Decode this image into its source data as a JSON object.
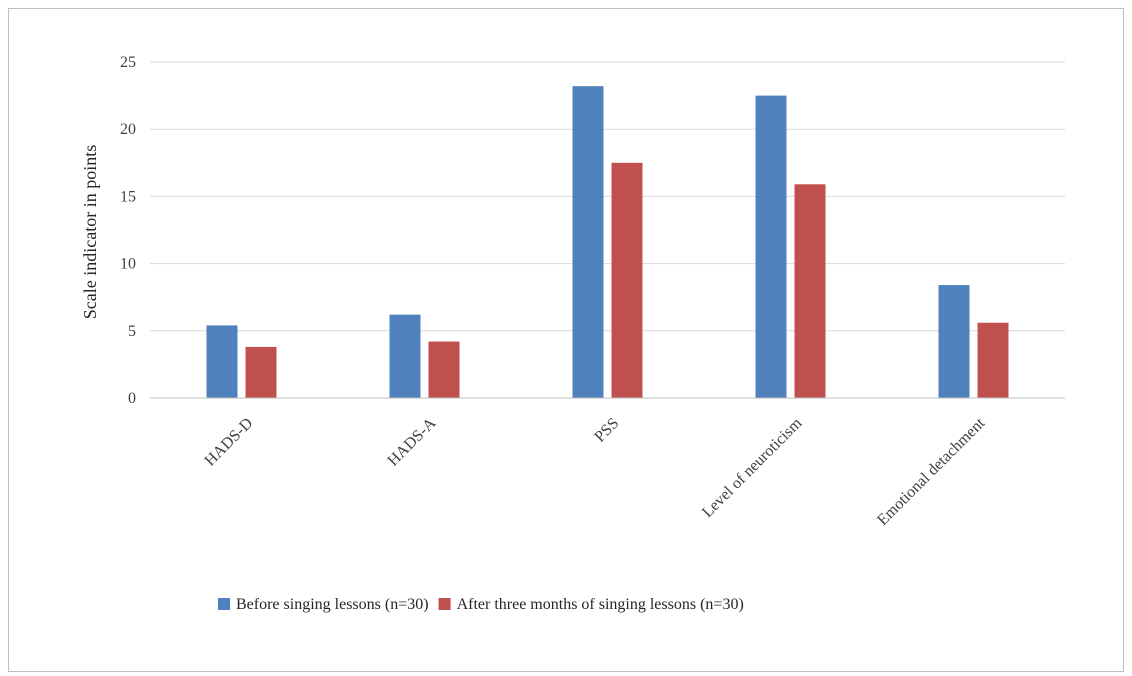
{
  "chart_data": {
    "type": "bar",
    "categories": [
      "HADS-D",
      "HADS-A",
      "PSS",
      "Level of neuroticism",
      "Emotional detachment"
    ],
    "series": [
      {
        "name": "Before singing lessons (n=30)",
        "color": "#4f81bd",
        "values": [
          5.4,
          6.2,
          23.2,
          22.5,
          8.4
        ]
      },
      {
        "name": "After three months of singing lessons (n=30)",
        "color": "#c0504d",
        "values": [
          3.8,
          4.2,
          17.5,
          15.9,
          5.6
        ]
      }
    ],
    "title": "",
    "xlabel": "",
    "ylabel": "Scale indicator in points",
    "ylim": [
      0,
      25
    ],
    "yticks": [
      "0",
      "5",
      "10",
      "15",
      "20",
      "25"
    ],
    "grid": true,
    "legend_position": "bottom"
  }
}
